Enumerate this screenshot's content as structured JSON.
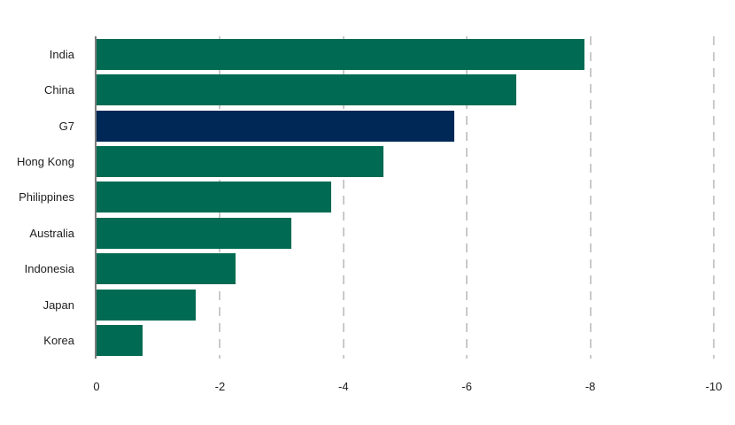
{
  "colors": {
    "bar_default": "#006B52",
    "bar_highlight": "#002857",
    "axis_line": "#7d7d7d",
    "gridline": "#c9c9c9",
    "text": "#1d1d1d",
    "background": "#ffffff"
  },
  "chart_data": {
    "type": "bar",
    "orientation": "horizontal",
    "title": "",
    "xlabel": "",
    "ylabel": "",
    "categories": [
      "India",
      "China",
      "G7",
      "Hong Kong",
      "Philippines",
      "Australia",
      "Indonesia",
      "Japan",
      "Korea"
    ],
    "values": [
      -7.9,
      -6.8,
      -5.8,
      -4.65,
      -3.8,
      -3.15,
      -2.25,
      -1.6,
      -0.75
    ],
    "highlight_category": "G7",
    "xlim": [
      0,
      -10
    ],
    "x_ticks": [
      {
        "label": "0",
        "value": 0
      },
      {
        "label": "-2",
        "value": -2
      },
      {
        "label": "-4",
        "value": -4
      },
      {
        "label": "-6",
        "value": -6
      },
      {
        "label": "-8",
        "value": -8
      },
      {
        "label": "-10",
        "value": -10
      }
    ],
    "grid": "vertical-dashed",
    "legend": "none"
  }
}
